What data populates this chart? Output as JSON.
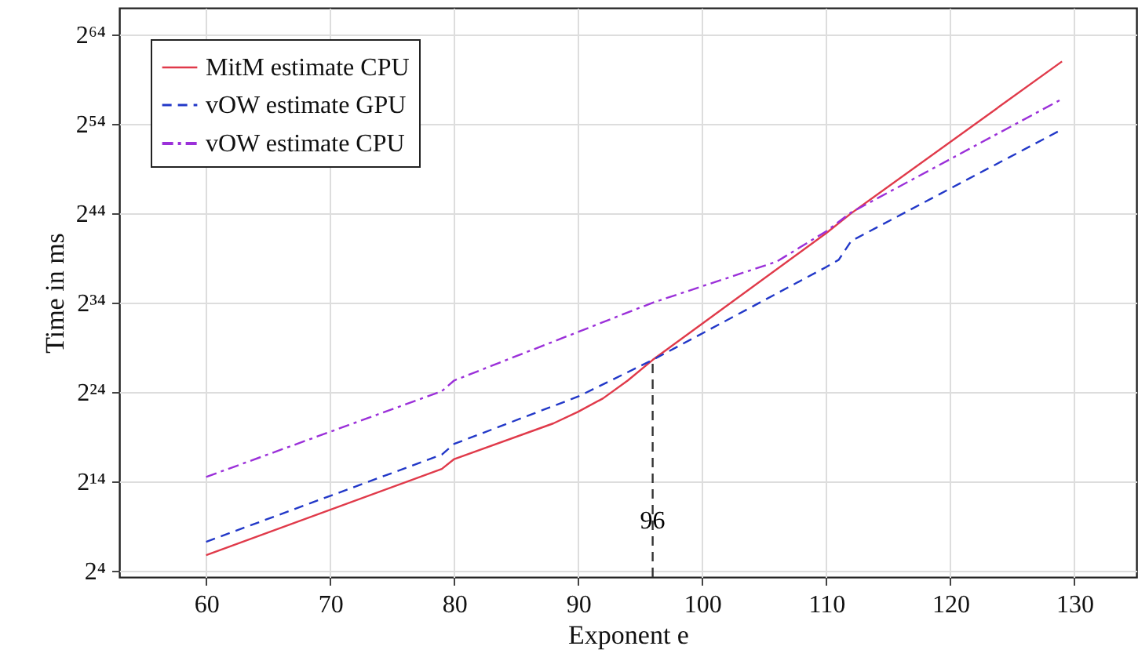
{
  "chart_data": {
    "type": "line",
    "xlabel": "Exponent e",
    "ylabel": "Time in ms",
    "log": "y",
    "grid": true,
    "legend": "top left",
    "xlim": [
      53,
      135
    ],
    "xticks": [
      60,
      70,
      80,
      90,
      100,
      110,
      120,
      130
    ],
    "ylim": [
      9.85,
      1.476e+20
    ],
    "yticks": [
      {
        "value": 16,
        "label": "2⁴"
      },
      {
        "value": 16384,
        "label": "2¹⁴"
      },
      {
        "value": 16777216,
        "label": "2²⁴"
      },
      {
        "value": 17179869184,
        "label": "2³⁴"
      },
      {
        "value": 17592186044416,
        "label": "2⁴⁴"
      },
      {
        "value": 18014398509481984,
        "label": "2⁵⁴"
      },
      {
        "value": 18446744073709551616,
        "label": "2⁶⁴"
      }
    ],
    "series": [
      {
        "name": "MitM estimate CPU",
        "color": "#e03a4a",
        "line_style": "solid",
        "x": [
          60,
          79,
          80,
          88,
          90,
          92,
          94,
          96,
          110,
          112,
          129
        ],
        "values": [
          53.8,
          43300,
          92700,
          1480000,
          3650000,
          10300000,
          41300000,
          203000000,
          3830000000000,
          17600000000000,
          2310000000000000000
        ]
      },
      {
        "name": "vOW estimate GPU",
        "color": "#2238c8",
        "line_style": "dashed",
        "x": [
          60,
          79,
          80,
          90,
          96,
          110,
          111,
          112,
          129
        ],
        "values": [
          152,
          131000,
          301000,
          11900000,
          203000000,
          275000000000,
          479000000000,
          2050000000000,
          11900000000000000
        ]
      },
      {
        "name": "vOW estimate CPU",
        "color": "#9b30d9",
        "line_style": "dashdot",
        "x": [
          60,
          79,
          80,
          96,
          106,
          110,
          112,
          129
        ],
        "values": [
          23200,
          18000000,
          41300000,
          17200000000,
          417000000000,
          4400000000000,
          18900000000000,
          125000000000000000
        ]
      }
    ],
    "ref_lines": [
      {
        "axis": "x",
        "value": 96,
        "label": "96",
        "color": "#333333",
        "line_style": "dashed"
      }
    ]
  }
}
